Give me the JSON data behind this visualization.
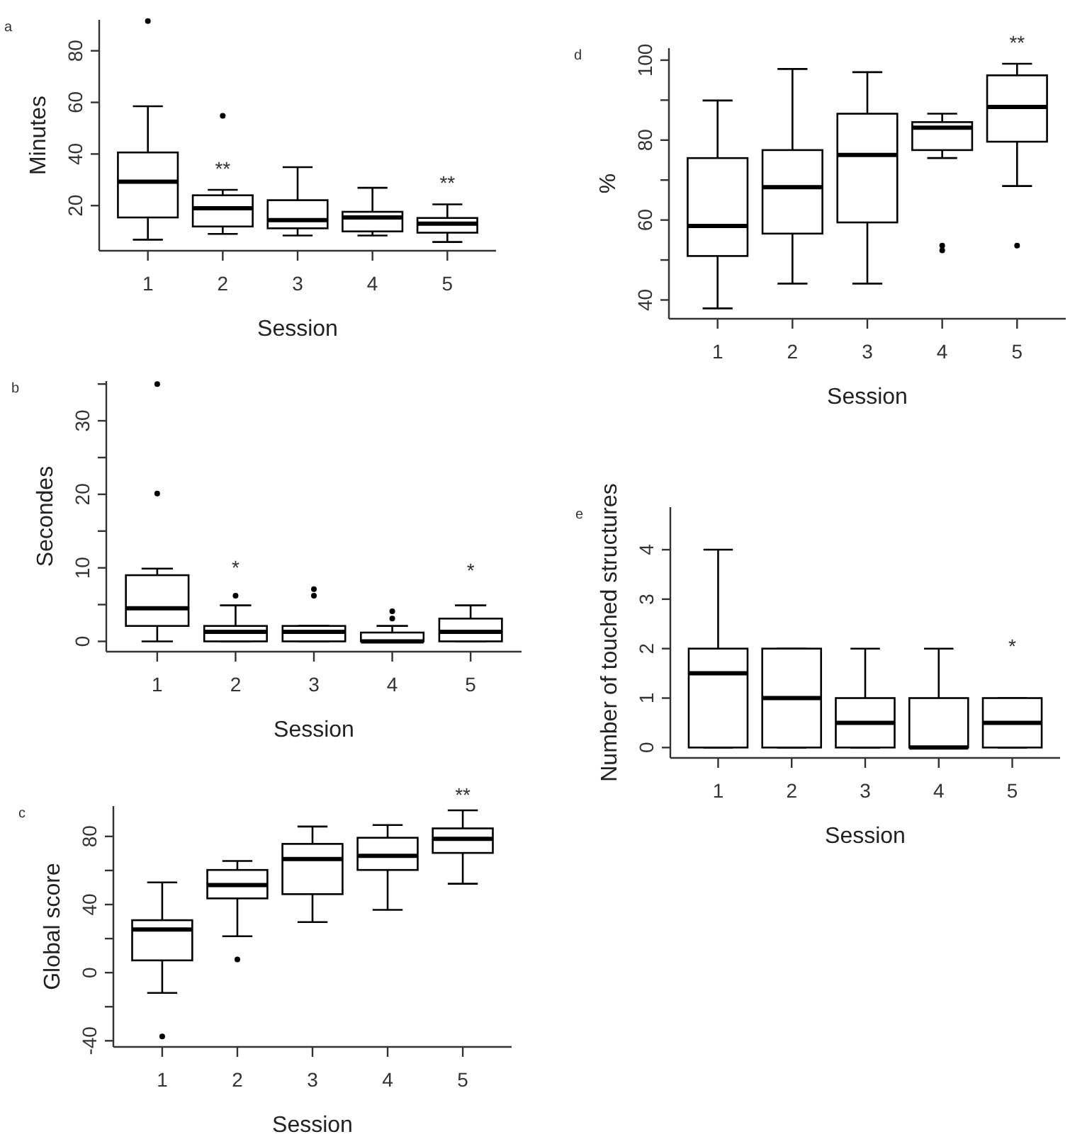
{
  "chart_data": [
    {
      "type": "box",
      "title": "a",
      "xlabel": "Session",
      "ylabel": "Minutes",
      "categories": [
        "1",
        "2",
        "3",
        "4",
        "5"
      ],
      "ylim": [
        2.5,
        92
      ],
      "yticks": [
        20,
        40,
        60,
        80
      ],
      "boxes": [
        {
          "low": 6.8,
          "q1": 15.4,
          "median": 29.3,
          "q3": 40.6,
          "high": 58.5,
          "outliers": [
            91.5
          ]
        },
        {
          "low": 9,
          "q1": 11.9,
          "median": 19,
          "q3": 24,
          "high": 26.1,
          "outliers": [
            54.8
          ]
        },
        {
          "low": 8.4,
          "q1": 11.2,
          "median": 14.4,
          "q3": 22.1,
          "high": 34.9
        },
        {
          "low": 8.4,
          "q1": 10,
          "median": 15.4,
          "q3": 17.6,
          "high": 26.9
        },
        {
          "low": 5.9,
          "q1": 9.5,
          "median": 13,
          "q3": 15.2,
          "high": 20.5
        }
      ],
      "annotations": [
        "**",
        "**"
      ]
    },
    {
      "type": "box",
      "title": "b",
      "xlabel": "Session",
      "ylabel": "Secondes",
      "categories": [
        "1",
        "2",
        "3",
        "4",
        "5"
      ],
      "ylim": [
        -1.4,
        35.4
      ],
      "yticks": [
        0,
        {
          "value": 5,
          "label": null
        },
        10,
        {
          "value": 15,
          "label": null
        },
        20,
        {
          "value": 25,
          "label": null
        },
        30,
        {
          "value": 35,
          "label": null
        }
      ],
      "boxes": [
        {
          "low": 0,
          "q1": 2.1,
          "median": 4.5,
          "q3": 9,
          "high": 9.9,
          "outliers": [
            20.1,
            35
          ]
        },
        {
          "low": 0,
          "q1": 0,
          "median": 1.3,
          "q3": 2.1,
          "high": 4.9,
          "outliers": [
            6.2
          ]
        },
        {
          "low": 0,
          "q1": 0,
          "median": 1.3,
          "q3": 2.1,
          "high": 2.1,
          "outliers": [
            6.2,
            7.1
          ]
        },
        {
          "low": 0,
          "q1": 0,
          "median": 0,
          "q3": 1.2,
          "high": 2.1,
          "outliers": [
            3.1,
            4.1
          ]
        },
        {
          "low": 0,
          "q1": 0,
          "median": 1.3,
          "q3": 3.1,
          "high": 4.9
        }
      ],
      "annotations": [
        "*",
        "*"
      ]
    },
    {
      "type": "box",
      "title": "c",
      "xlabel": "Session",
      "ylabel": "Global score",
      "categories": [
        "1",
        "2",
        "3",
        "4",
        "5"
      ],
      "ylim": [
        -43.6,
        97.8
      ],
      "yticks": [
        -40,
        {
          "value": -20,
          "label": null
        },
        0,
        {
          "value": 20,
          "label": null
        },
        40,
        {
          "value": 60,
          "label": null
        },
        80
      ],
      "boxes": [
        {
          "low": -11.9,
          "q1": 7.2,
          "median": 25.3,
          "q3": 30.8,
          "high": 53,
          "outliers": [
            -37.5
          ]
        },
        {
          "low": 21.4,
          "q1": 43.6,
          "median": 51.4,
          "q3": 60.3,
          "high": 65.6,
          "outliers": [
            7.8
          ]
        },
        {
          "low": 29.7,
          "q1": 46.1,
          "median": 66.7,
          "q3": 75.6,
          "high": 85.8
        },
        {
          "low": 36.9,
          "q1": 60.3,
          "median": 68.6,
          "q3": 79.2,
          "high": 86.7
        },
        {
          "low": 52.2,
          "q1": 70.3,
          "median": 78.6,
          "q3": 84.7,
          "high": 95.3
        }
      ],
      "annotations": [
        "**"
      ]
    },
    {
      "type": "box",
      "title": "d",
      "xlabel": "Session",
      "ylabel": "%",
      "categories": [
        "1",
        "2",
        "3",
        "4",
        "5"
      ],
      "ylim": [
        35.3,
        103
      ],
      "yticks": [
        40,
        {
          "value": 50,
          "label": null
        },
        60,
        {
          "value": 70,
          "label": null
        },
        80,
        {
          "value": 90,
          "label": null
        },
        100
      ],
      "boxes": [
        {
          "low": 37.9,
          "q1": 51,
          "median": 58.5,
          "q3": 75.5,
          "high": 89.9
        },
        {
          "low": 44.1,
          "q1": 56.6,
          "median": 68.2,
          "q3": 77.5,
          "high": 97.8
        },
        {
          "low": 44.1,
          "q1": 59.4,
          "median": 76.3,
          "q3": 86.6,
          "high": 97
        },
        {
          "low": 75.5,
          "q1": 77.5,
          "median": 83.1,
          "q3": 84.5,
          "high": 86.6,
          "outliers": [
            52.4,
            53.6
          ]
        },
        {
          "low": 68.5,
          "q1": 79.6,
          "median": 88.3,
          "q3": 96.2,
          "high": 99.1,
          "outliers": [
            53.6
          ]
        }
      ],
      "annotations": [
        "**"
      ]
    },
    {
      "type": "box",
      "title": "e",
      "xlabel": "Session",
      "ylabel": "Number of touched structures",
      "categories": [
        "1",
        "2",
        "3",
        "4",
        "5"
      ],
      "ylim": [
        -0.21,
        4.86
      ],
      "yticks": [
        0,
        1,
        2,
        3,
        4
      ],
      "boxes": [
        {
          "low": 0,
          "q1": 0,
          "median": 1.5,
          "q3": 2,
          "high": 4
        },
        {
          "low": 0,
          "q1": 0,
          "median": 1,
          "q3": 2,
          "high": 2
        },
        {
          "low": 0,
          "q1": 0,
          "median": 0.5,
          "q3": 1,
          "high": 2
        },
        {
          "low": 0,
          "q1": 0,
          "median": 0,
          "q3": 1,
          "high": 2
        },
        {
          "low": 0,
          "q1": 0,
          "median": 0.5,
          "q3": 1,
          "high": 1
        }
      ],
      "annotations": [
        "*"
      ]
    }
  ]
}
